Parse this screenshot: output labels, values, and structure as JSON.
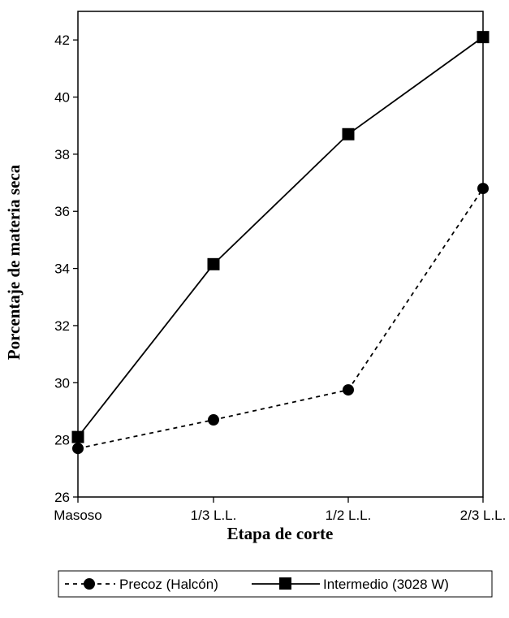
{
  "chart_data": {
    "type": "line",
    "xlabel": "Etapa de corte",
    "ylabel": "Porcentaje de materia seca",
    "categories": [
      "Masoso",
      "1/3 L.L.",
      "1/2 L.L.",
      "2/3 L.L."
    ],
    "ylim": [
      26,
      43
    ],
    "yticks": [
      26,
      28,
      30,
      32,
      34,
      36,
      38,
      40,
      42
    ],
    "grid": false,
    "legend_position": "bottom",
    "series": [
      {
        "name": "Precoz (Halcón)",
        "values": [
          27.7,
          28.7,
          29.75,
          36.8
        ],
        "line_style": "dashed",
        "marker": "circle",
        "color": "#000000"
      },
      {
        "name": "Intermedio (3028 W)",
        "values": [
          28.1,
          34.15,
          38.7,
          42.1
        ],
        "line_style": "solid",
        "marker": "square",
        "color": "#000000"
      }
    ]
  }
}
